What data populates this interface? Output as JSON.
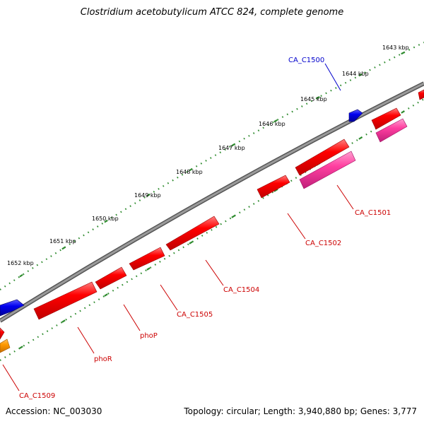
{
  "title": "Clostridium acetobutylicum ATCC 824, complete genome",
  "footer": {
    "accession": "Accession: NC_003030",
    "stats": "Topology: circular; Length: 3,940,880 bp; Genes: 3,777"
  },
  "colors": {
    "backbone": "#808080",
    "ticks": "#2e8b2e",
    "cds_red": "#ff0000",
    "cds_pink": "#ff3fa0",
    "cds_blue": "#0000ee",
    "cds_orange": "#ff9900",
    "label_red": "#cc0000",
    "label_blue": "#0000cc"
  },
  "kbp_labels": [
    "1643 kbp",
    "1644 kbp",
    "1645 kbp",
    "1646 kbp",
    "1647 kbp",
    "1648 kbp",
    "1649 kbp",
    "1650 kbp",
    "1651 kbp",
    "1652 kbp"
  ],
  "genes": [
    {
      "label": "CA_C1500",
      "color": "blue"
    },
    {
      "label": "CA_C1501",
      "color": "red"
    },
    {
      "label": "CA_C1502",
      "color": "red"
    },
    {
      "label": "CA_C1504",
      "color": "red"
    },
    {
      "label": "CA_C1505",
      "color": "red"
    },
    {
      "label": "phoP",
      "color": "red"
    },
    {
      "label": "phoR",
      "color": "red"
    },
    {
      "label": "CA_C1509",
      "color": "red"
    }
  ]
}
